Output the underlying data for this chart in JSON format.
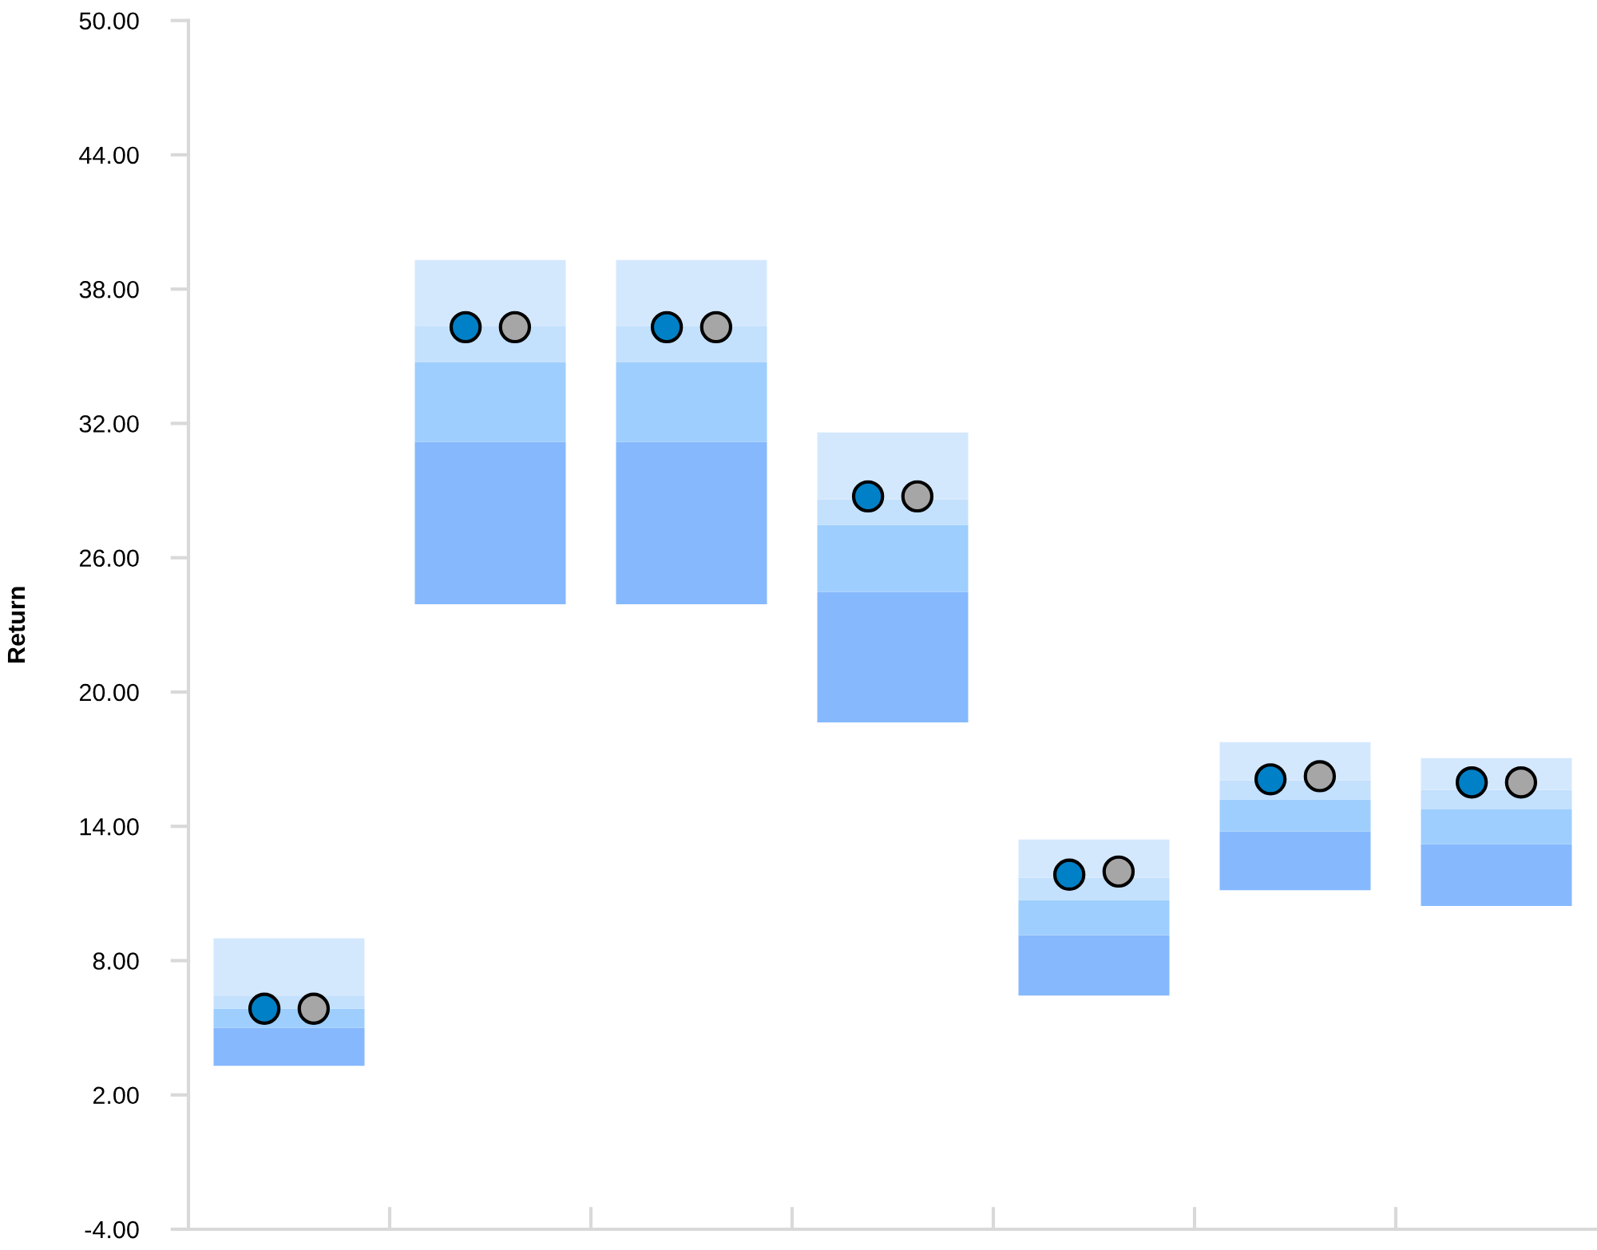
{
  "chart_data": {
    "type": "bar",
    "ylabel": "Return",
    "categories": [
      null,
      null,
      null,
      null,
      null,
      null,
      null
    ],
    "series": [
      {
        "color": "#86b8fe",
        "base": [
          3.3,
          23.92,
          23.92,
          18.64,
          6.44,
          11.15,
          10.44
        ],
        "values": [
          1.7,
          7.25,
          7.25,
          5.83,
          2.69,
          2.62,
          2.76
        ]
      },
      {
        "color": "#9ecefd",
        "base": [
          5.0,
          31.17,
          31.17,
          24.47,
          9.13,
          13.77,
          13.2
        ],
        "values": [
          0.85,
          3.57,
          3.57,
          2.99,
          1.57,
          1.43,
          1.56
        ]
      },
      {
        "color": "#c3e0fd",
        "base": [
          5.85,
          34.74,
          34.74,
          27.46,
          10.7,
          15.2,
          14.76
        ],
        "values": [
          0.59,
          1.59,
          1.59,
          1.14,
          1.0,
          0.85,
          0.86
        ]
      },
      {
        "color": "#d4e8fd",
        "base": [
          6.44,
          36.33,
          36.33,
          28.6,
          11.7,
          16.05,
          15.62
        ],
        "values": [
          2.56,
          2.97,
          2.97,
          3.0,
          1.71,
          1.71,
          1.43
        ]
      },
      {
        "type": "scatter",
        "color": "#0080c6",
        "marker": "circle",
        "values": [
          5.85,
          36.3,
          36.3,
          28.74,
          11.84,
          16.1,
          15.96
        ]
      },
      {
        "type": "scatter",
        "color": "#a6a6a6",
        "marker": "circle",
        "values": [
          5.85,
          36.3,
          36.3,
          28.74,
          11.98,
          16.24,
          15.96
        ]
      }
    ],
    "ylim": [
      -4,
      50
    ],
    "yticks": [
      {
        "value": -4,
        "label": "-4.00"
      },
      {
        "value": 2,
        "label": "2.00"
      },
      {
        "value": 8,
        "label": "8.00"
      },
      {
        "value": 14,
        "label": "14.00"
      },
      {
        "value": 20,
        "label": "20.00"
      },
      {
        "value": 26,
        "label": "26.00"
      },
      {
        "value": 32,
        "label": "32.00"
      },
      {
        "value": 38,
        "label": "38.00"
      },
      {
        "value": 44,
        "label": "44.00"
      },
      {
        "value": 50,
        "label": "50.00"
      }
    ],
    "grid": false,
    "legend": false
  }
}
